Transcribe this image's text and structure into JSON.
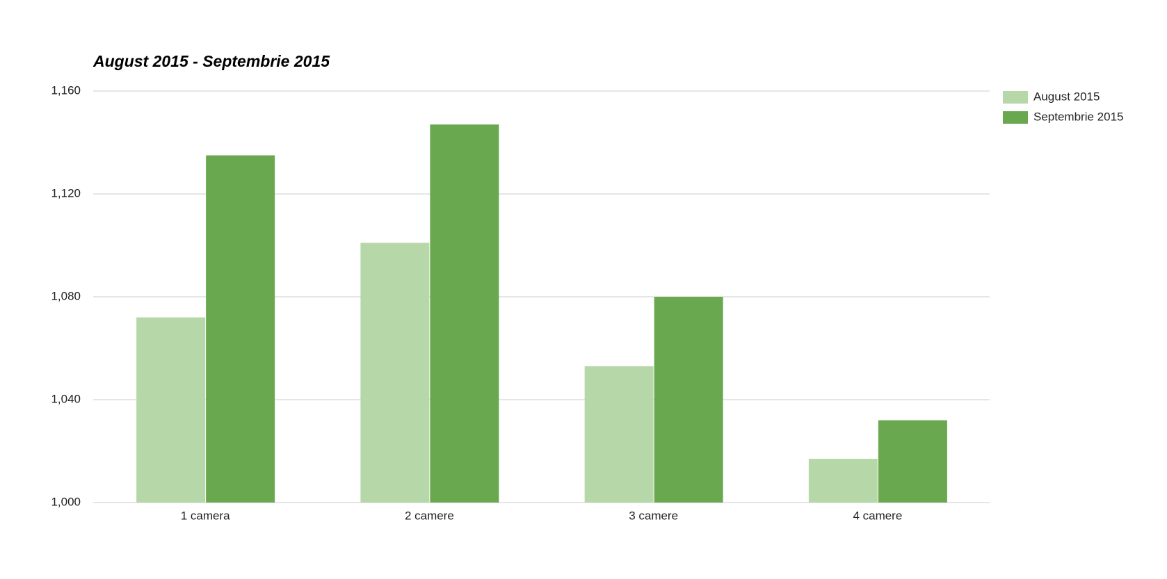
{
  "chart_data": {
    "type": "bar",
    "title": "August 2015 - Septembrie 2015",
    "categories": [
      "1 camera",
      "2 camere",
      "3 camere",
      "4 camere"
    ],
    "series": [
      {
        "name": "August 2015",
        "color": "#b6d7a8",
        "values": [
          1072,
          1101,
          1053,
          1017
        ]
      },
      {
        "name": "Septembrie 2015",
        "color": "#6aa84f",
        "values": [
          1135,
          1147,
          1080,
          1032
        ]
      }
    ],
    "ylim": [
      1000,
      1160
    ],
    "yticks": [
      {
        "value": 1000,
        "label": "1,000"
      },
      {
        "value": 1040,
        "label": "1,040"
      },
      {
        "value": 1080,
        "label": "1,080"
      },
      {
        "value": 1120,
        "label": "1,120"
      },
      {
        "value": 1160,
        "label": "1,160"
      }
    ],
    "grid": true,
    "legend": "right"
  }
}
